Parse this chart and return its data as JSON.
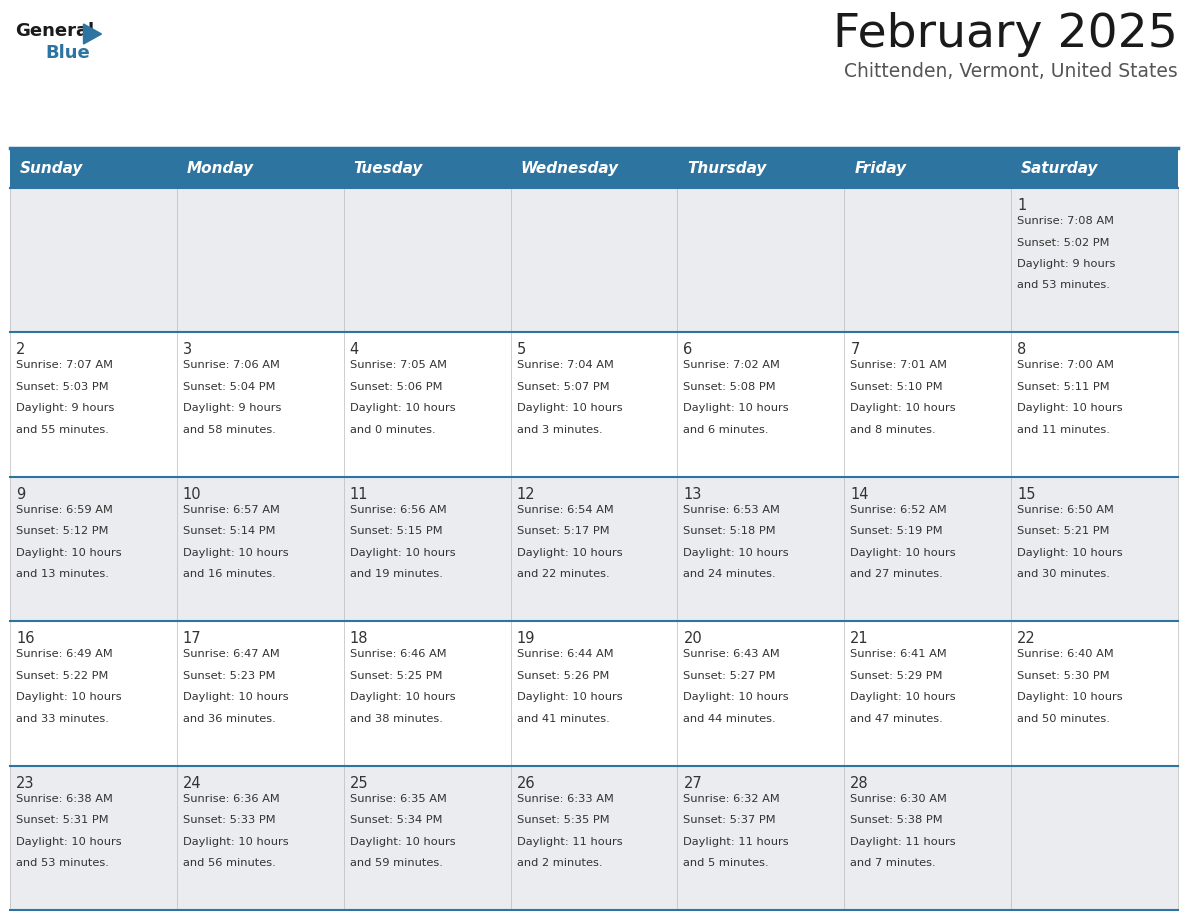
{
  "title": "February 2025",
  "subtitle": "Chittenden, Vermont, United States",
  "header_bg": "#2E74A0",
  "header_text_color": "#FFFFFF",
  "days_of_week": [
    "Sunday",
    "Monday",
    "Tuesday",
    "Wednesday",
    "Thursday",
    "Friday",
    "Saturday"
  ],
  "cell_bg_even": "#EAECF0",
  "cell_bg_odd": "#FFFFFF",
  "row_separator_color": "#2E74A0",
  "text_color": "#333333",
  "day_num_color": "#333333",
  "calendar_data": [
    [
      null,
      null,
      null,
      null,
      null,
      null,
      {
        "day": "1",
        "sunrise": "7:08 AM",
        "sunset": "5:02 PM",
        "daylight_h": "9 hours",
        "daylight_m": "and 53 minutes."
      }
    ],
    [
      {
        "day": "2",
        "sunrise": "7:07 AM",
        "sunset": "5:03 PM",
        "daylight_h": "9 hours",
        "daylight_m": "and 55 minutes."
      },
      {
        "day": "3",
        "sunrise": "7:06 AM",
        "sunset": "5:04 PM",
        "daylight_h": "9 hours",
        "daylight_m": "and 58 minutes."
      },
      {
        "day": "4",
        "sunrise": "7:05 AM",
        "sunset": "5:06 PM",
        "daylight_h": "10 hours",
        "daylight_m": "and 0 minutes."
      },
      {
        "day": "5",
        "sunrise": "7:04 AM",
        "sunset": "5:07 PM",
        "daylight_h": "10 hours",
        "daylight_m": "and 3 minutes."
      },
      {
        "day": "6",
        "sunrise": "7:02 AM",
        "sunset": "5:08 PM",
        "daylight_h": "10 hours",
        "daylight_m": "and 6 minutes."
      },
      {
        "day": "7",
        "sunrise": "7:01 AM",
        "sunset": "5:10 PM",
        "daylight_h": "10 hours",
        "daylight_m": "and 8 minutes."
      },
      {
        "day": "8",
        "sunrise": "7:00 AM",
        "sunset": "5:11 PM",
        "daylight_h": "10 hours",
        "daylight_m": "and 11 minutes."
      }
    ],
    [
      {
        "day": "9",
        "sunrise": "6:59 AM",
        "sunset": "5:12 PM",
        "daylight_h": "10 hours",
        "daylight_m": "and 13 minutes."
      },
      {
        "day": "10",
        "sunrise": "6:57 AM",
        "sunset": "5:14 PM",
        "daylight_h": "10 hours",
        "daylight_m": "and 16 minutes."
      },
      {
        "day": "11",
        "sunrise": "6:56 AM",
        "sunset": "5:15 PM",
        "daylight_h": "10 hours",
        "daylight_m": "and 19 minutes."
      },
      {
        "day": "12",
        "sunrise": "6:54 AM",
        "sunset": "5:17 PM",
        "daylight_h": "10 hours",
        "daylight_m": "and 22 minutes."
      },
      {
        "day": "13",
        "sunrise": "6:53 AM",
        "sunset": "5:18 PM",
        "daylight_h": "10 hours",
        "daylight_m": "and 24 minutes."
      },
      {
        "day": "14",
        "sunrise": "6:52 AM",
        "sunset": "5:19 PM",
        "daylight_h": "10 hours",
        "daylight_m": "and 27 minutes."
      },
      {
        "day": "15",
        "sunrise": "6:50 AM",
        "sunset": "5:21 PM",
        "daylight_h": "10 hours",
        "daylight_m": "and 30 minutes."
      }
    ],
    [
      {
        "day": "16",
        "sunrise": "6:49 AM",
        "sunset": "5:22 PM",
        "daylight_h": "10 hours",
        "daylight_m": "and 33 minutes."
      },
      {
        "day": "17",
        "sunrise": "6:47 AM",
        "sunset": "5:23 PM",
        "daylight_h": "10 hours",
        "daylight_m": "and 36 minutes."
      },
      {
        "day": "18",
        "sunrise": "6:46 AM",
        "sunset": "5:25 PM",
        "daylight_h": "10 hours",
        "daylight_m": "and 38 minutes."
      },
      {
        "day": "19",
        "sunrise": "6:44 AM",
        "sunset": "5:26 PM",
        "daylight_h": "10 hours",
        "daylight_m": "and 41 minutes."
      },
      {
        "day": "20",
        "sunrise": "6:43 AM",
        "sunset": "5:27 PM",
        "daylight_h": "10 hours",
        "daylight_m": "and 44 minutes."
      },
      {
        "day": "21",
        "sunrise": "6:41 AM",
        "sunset": "5:29 PM",
        "daylight_h": "10 hours",
        "daylight_m": "and 47 minutes."
      },
      {
        "day": "22",
        "sunrise": "6:40 AM",
        "sunset": "5:30 PM",
        "daylight_h": "10 hours",
        "daylight_m": "and 50 minutes."
      }
    ],
    [
      {
        "day": "23",
        "sunrise": "6:38 AM",
        "sunset": "5:31 PM",
        "daylight_h": "10 hours",
        "daylight_m": "and 53 minutes."
      },
      {
        "day": "24",
        "sunrise": "6:36 AM",
        "sunset": "5:33 PM",
        "daylight_h": "10 hours",
        "daylight_m": "and 56 minutes."
      },
      {
        "day": "25",
        "sunrise": "6:35 AM",
        "sunset": "5:34 PM",
        "daylight_h": "10 hours",
        "daylight_m": "and 59 minutes."
      },
      {
        "day": "26",
        "sunrise": "6:33 AM",
        "sunset": "5:35 PM",
        "daylight_h": "11 hours",
        "daylight_m": "and 2 minutes."
      },
      {
        "day": "27",
        "sunrise": "6:32 AM",
        "sunset": "5:37 PM",
        "daylight_h": "11 hours",
        "daylight_m": "and 5 minutes."
      },
      {
        "day": "28",
        "sunrise": "6:30 AM",
        "sunset": "5:38 PM",
        "daylight_h": "11 hours",
        "daylight_m": "and 7 minutes."
      },
      null
    ]
  ],
  "logo_general_color": "#1a1a1a",
  "logo_blue_color": "#2E74A0",
  "logo_triangle_color": "#2E74A0"
}
